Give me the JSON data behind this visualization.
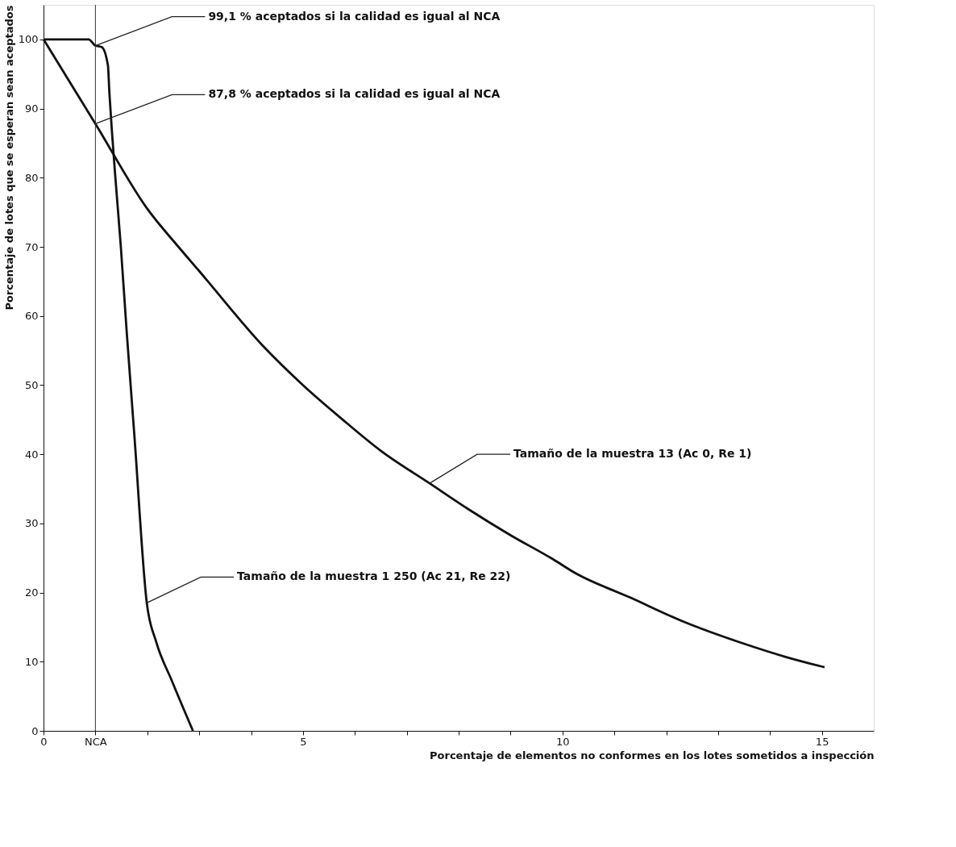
{
  "chart_data": {
    "type": "line",
    "xlabel": "Porcentaje de elementos no conformes en los lotes sometidos a inspección",
    "ylabel": "Porcentaje de lotes que se esperan sean aceptados",
    "xlim": [
      0,
      16
    ],
    "ylim": [
      0,
      105
    ],
    "xticks": [
      0,
      {
        "value": 1,
        "label": "NCA"
      },
      {
        "value": 2,
        "label": null
      },
      {
        "value": 3,
        "label": null
      },
      {
        "value": 4,
        "label": null
      },
      5,
      {
        "value": 6,
        "label": null
      },
      {
        "value": 7,
        "label": null
      },
      {
        "value": 8,
        "label": null
      },
      {
        "value": 9,
        "label": null
      },
      10,
      {
        "value": 11,
        "label": null
      },
      {
        "value": 12,
        "label": null
      },
      {
        "value": 13,
        "label": null
      },
      {
        "value": 14,
        "label": null
      },
      15
    ],
    "yticks": [
      0,
      10,
      20,
      30,
      40,
      50,
      60,
      70,
      80,
      90,
      100
    ],
    "grid": false,
    "series": [
      {
        "color": "#111111",
        "x": [
          0,
          1,
          2,
          2.6,
          3,
          4.25,
          5,
          5.75,
          6.5,
          7.44,
          8.2,
          9,
          9.8,
          10.25,
          11.3,
          12.3,
          13.5,
          14.3,
          15.05
        ],
        "values": [
          100,
          87.8,
          75.5,
          70,
          66.5,
          55.5,
          50,
          45.1,
          40.5,
          35.8,
          32,
          28.3,
          24.9,
          22.8,
          19.3,
          15.9,
          12.6,
          10.7,
          9.2
        ]
      },
      {
        "color": "#111111",
        "x": [
          0,
          0.87,
          1,
          1.12,
          1.24,
          1.27,
          1.32,
          1.39,
          1.49,
          1.6,
          1.75,
          1.99,
          2.17,
          2.47,
          2.88
        ],
        "values": [
          100,
          100,
          99.1,
          98.9,
          96.3,
          92.2,
          86.5,
          79.5,
          70,
          58,
          42.8,
          18.5,
          12.9,
          7.3,
          0
        ]
      }
    ],
    "ref_lines": [
      {
        "axis": "x",
        "value": 1,
        "label": null
      }
    ],
    "annotations": [
      {
        "text": "99,1 % aceptados si la calidad es igual al NCA",
        "x": 1,
        "y": 99.1
      },
      {
        "text": "87,8 % aceptados si la calidad es igual al NCA",
        "x": 1,
        "y": 87.8
      },
      {
        "text": "Tamaño de la muestra 13 (Ac 0, Re 1)",
        "x": 7.44,
        "y": 35.8
      },
      {
        "text": "Tamaño de la muestra 1 250 (Ac 21, Re 22)",
        "x": 1.99,
        "y": 18.5
      }
    ]
  }
}
